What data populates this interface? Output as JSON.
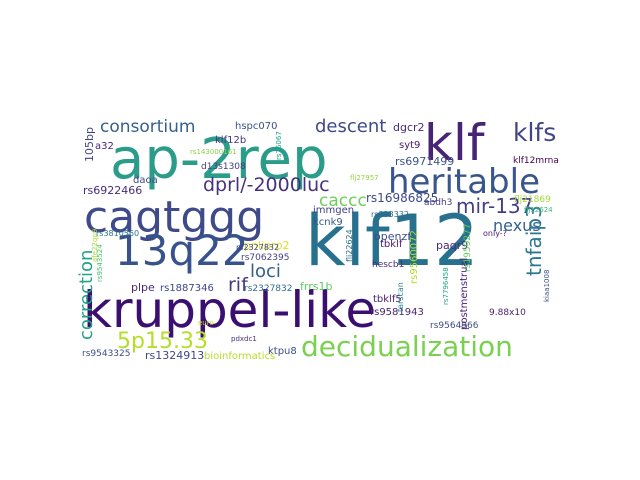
{
  "title": "word cloud",
  "words": [
    {
      "text": "kruppel-like",
      "color": "#3b0f70"
    },
    {
      "text": "ap-2rep",
      "color": "#2c9c8a"
    },
    {
      "text": "klf12",
      "color": "#27718e"
    },
    {
      "text": "cagtggg",
      "color": "#3e4a89"
    },
    {
      "text": "klf",
      "color": "#482475"
    },
    {
      "text": "13q22",
      "color": "#38528c"
    },
    {
      "text": "heritable",
      "color": "#39568c"
    },
    {
      "text": "decidualization",
      "color": "#7ad151"
    },
    {
      "text": "5p15.33",
      "color": "#b5de2b"
    },
    {
      "text": "klfs",
      "color": "#414487"
    },
    {
      "text": "consortium",
      "color": "#35608d"
    },
    {
      "text": "dprl/-2000luc",
      "color": "#46337e"
    },
    {
      "text": "mir-137",
      "color": "#433e85"
    },
    {
      "text": "nexus",
      "color": "#34618d"
    },
    {
      "text": "descent",
      "color": "#3e4989"
    },
    {
      "text": "tnfaip3",
      "color": "#2a788e"
    },
    {
      "text": "correction",
      "color": "#20a386"
    },
    {
      "text": "loci",
      "color": "#355f8d"
    },
    {
      "text": "rif",
      "color": "#453781"
    },
    {
      "text": "caccc",
      "color": "#6ece58"
    },
    {
      "text": "rs16986825",
      "color": "#3e4a89"
    },
    {
      "text": "rs6971499",
      "color": "#3b528b"
    },
    {
      "text": "rs6922466",
      "color": "#472c7a"
    },
    {
      "text": "klf12b",
      "color": "#46327e"
    },
    {
      "text": "hspc070",
      "color": "#3b528b"
    },
    {
      "text": "dgcr2",
      "color": "#472a7a"
    },
    {
      "text": "syt9",
      "color": "#48186a"
    },
    {
      "text": "d13s1308",
      "color": "#443a83"
    },
    {
      "text": "daoa",
      "color": "#3f4788"
    },
    {
      "text": "plpe",
      "color": "#482878"
    },
    {
      "text": "immgen",
      "color": "#424086"
    },
    {
      "text": "kcnk9",
      "color": "#39558c"
    },
    {
      "text": "openzf",
      "color": "#3c4f8a"
    },
    {
      "text": "paqr9",
      "color": "#472c7a"
    },
    {
      "text": "pnliprp2",
      "color": "#dde318"
    },
    {
      "text": "rs7062395",
      "color": "#424086"
    },
    {
      "text": "rs1887346",
      "color": "#404588"
    },
    {
      "text": "rs2327832",
      "color": "#2f6c8e"
    },
    {
      "text": "frrs1b",
      "color": "#5ec962"
    },
    {
      "text": "ktpu8",
      "color": "#3c4f8a"
    },
    {
      "text": "tbklf5",
      "color": "#482071"
    },
    {
      "text": "tbklf",
      "color": "#48186a"
    },
    {
      "text": "rs9581943",
      "color": "#482475"
    },
    {
      "text": "rs9564966",
      "color": "#3e4a89"
    },
    {
      "text": "9.88x10",
      "color": "#482173"
    },
    {
      "text": "postmenstrual",
      "color": "#482475"
    },
    {
      "text": "rs1324913",
      "color": "#3f4788"
    },
    {
      "text": "bioinformatics",
      "color": "#b8de29"
    },
    {
      "text": "rs9543325",
      "color": "#3d4e8a"
    },
    {
      "text": "rs3810560",
      "color": "#2d708e"
    },
    {
      "text": "rs2327832",
      "color": "#414487"
    },
    {
      "text": "hescb1",
      "color": "#472a7a"
    },
    {
      "text": "klf12mrna",
      "color": "#440154"
    },
    {
      "text": "abdh3",
      "color": "#433e85"
    },
    {
      "text": "rs333332",
      "color": "#2e6e8e"
    },
    {
      "text": "flj22624",
      "color": "#2d708e"
    },
    {
      "text": "rs1959277",
      "color": "#63cb5f"
    },
    {
      "text": "rs9560072",
      "color": "#addc30"
    },
    {
      "text": "only-?",
      "color": "#481a6c"
    },
    {
      "text": "flj21869",
      "color": "#a2da37"
    },
    {
      "text": "105bp",
      "color": "#414487"
    },
    {
      "text": "a32",
      "color": "#482878"
    },
    {
      "text": "rs143000161",
      "color": "#84d44b"
    },
    {
      "text": "rs9543524",
      "color": "#4ac16d"
    },
    {
      "text": "tarscan",
      "color": "#26828e"
    },
    {
      "text": "pdxdc1",
      "color": "#46327e"
    },
    {
      "text": "rs76067",
      "color": "#1fa088"
    },
    {
      "text": "kiaa1008",
      "color": "#3b528b"
    },
    {
      "text": "rs7796458",
      "color": "#22a785"
    },
    {
      "text": "afe22qp9",
      "color": "#a8db34"
    },
    {
      "text": "flj12624",
      "color": "#35b779"
    },
    {
      "text": "flj27957",
      "color": "#90d743"
    },
    {
      "text": "euro",
      "color": "#c2df23"
    }
  ]
}
